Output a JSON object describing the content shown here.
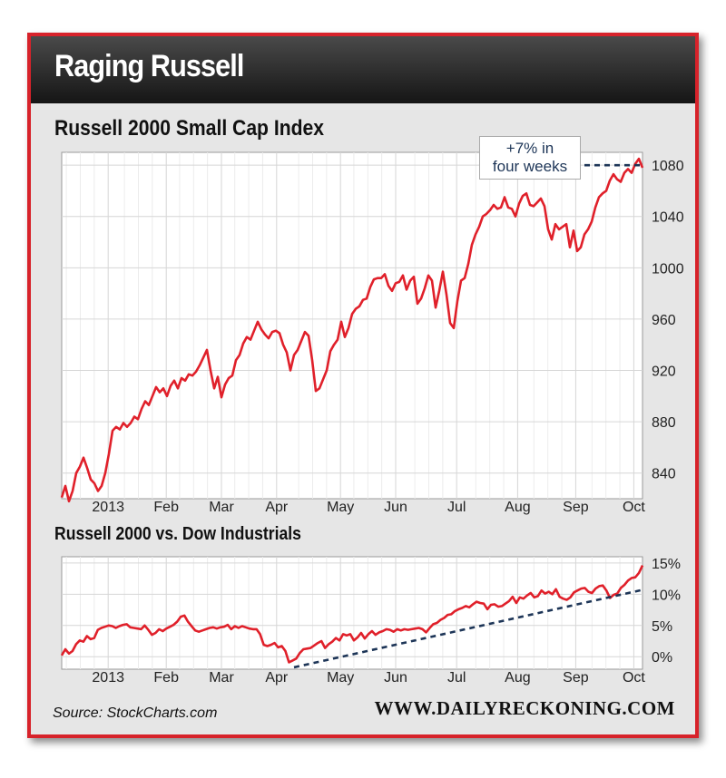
{
  "header": {
    "title": "Raging Russell"
  },
  "source": "Source: StockCharts.com",
  "brand": "WWW.DAILYRECKONING.COM",
  "colors": {
    "frame": "#d7222a",
    "line": "#e0202a",
    "trend": "#1d3557",
    "header": "#222222"
  },
  "chart_data": [
    {
      "type": "line",
      "title": "Russell 2000 Small Cap Index",
      "x_tick_labels": [
        "2013",
        "Feb",
        "Mar",
        "Apr",
        "May",
        "Jun",
        "Jul",
        "Aug",
        "Sep",
        "Oct"
      ],
      "y_tick_labels": [
        "840",
        "880",
        "920",
        "960",
        "1000",
        "1040",
        "1080"
      ],
      "ylim": [
        820,
        1090
      ],
      "annotation": {
        "line1": "+7% in",
        "line2": "four weeks"
      },
      "series": [
        {
          "values": [
            821,
            830,
            818,
            826,
            840,
            845,
            852,
            844,
            835,
            832,
            826,
            830,
            840,
            855,
            873,
            876,
            874,
            879,
            876,
            879,
            884,
            882,
            890,
            896,
            893,
            900,
            907,
            903,
            906,
            900,
            908,
            912,
            906,
            914,
            912,
            917,
            916,
            919,
            924,
            930,
            936,
            920,
            906,
            915,
            899,
            909,
            914,
            916,
            928,
            932,
            941,
            946,
            944,
            951,
            958,
            952,
            948,
            945,
            950,
            951,
            949,
            940,
            934,
            920,
            932,
            936,
            943,
            950,
            947,
            928,
            904,
            906,
            913,
            920,
            935,
            940,
            944,
            958,
            946,
            953,
            964,
            968,
            970,
            975,
            976,
            985,
            991,
            992,
            992,
            995,
            986,
            982,
            988,
            989,
            994,
            983,
            990,
            993,
            972,
            976,
            984,
            994,
            990,
            969,
            982,
            997,
            979,
            957,
            953,
            974,
            990,
            992,
            1003,
            1018,
            1026,
            1032,
            1040,
            1042,
            1045,
            1049,
            1046,
            1047,
            1055,
            1047,
            1046,
            1040,
            1050,
            1056,
            1058,
            1049,
            1048,
            1051,
            1054,
            1048,
            1030,
            1022,
            1034,
            1030,
            1032,
            1034,
            1016,
            1029,
            1013,
            1016,
            1026,
            1030,
            1036,
            1047,
            1055,
            1058,
            1060,
            1068,
            1073,
            1069,
            1067,
            1074,
            1077,
            1074,
            1081,
            1085,
            1078
          ]
        }
      ],
      "trend_dotted": [
        {
          "x": 0.9,
          "y": 1080
        },
        {
          "x": 1.0,
          "y": 1080
        }
      ]
    },
    {
      "type": "line",
      "title": "Russell 2000 vs. Dow Industrials",
      "x_tick_labels": [
        "2013",
        "Feb",
        "Mar",
        "Apr",
        "May",
        "Jun",
        "Jul",
        "Aug",
        "Sep",
        "Oct"
      ],
      "y_tick_labels": [
        "0%",
        "5%",
        "10%",
        "15%"
      ],
      "ylim": [
        -2,
        16
      ],
      "series": [
        {
          "values": [
            0.2,
            1.2,
            0.5,
            0.9,
            2.0,
            2.6,
            2.4,
            3.3,
            2.8,
            3.0,
            4.3,
            4.6,
            4.8,
            5.0,
            4.9,
            4.6,
            4.9,
            5.1,
            5.2,
            4.7,
            4.6,
            4.5,
            4.4,
            5.0,
            4.3,
            3.5,
            3.8,
            4.4,
            4.1,
            4.5,
            4.8,
            5.1,
            5.6,
            6.4,
            6.6,
            5.6,
            4.9,
            4.2,
            4.0,
            4.2,
            4.4,
            4.6,
            4.7,
            4.5,
            4.7,
            4.8,
            5.1,
            4.4,
            4.9,
            4.6,
            4.9,
            4.7,
            4.5,
            4.4,
            4.4,
            3.6,
            1.9,
            1.7,
            1.9,
            2.2,
            1.5,
            1.7,
            0.9,
            -0.9,
            -0.6,
            -0.3,
            0.6,
            1.2,
            1.3,
            1.4,
            1.8,
            2.2,
            2.5,
            1.4,
            2.0,
            2.4,
            3.0,
            2.6,
            3.6,
            3.4,
            3.6,
            2.6,
            3.1,
            3.8,
            2.9,
            3.6,
            4.1,
            3.5,
            3.9,
            4.1,
            4.4,
            4.3,
            4.0,
            4.4,
            4.2,
            4.4,
            4.3,
            4.4,
            4.5,
            4.6,
            4.4,
            3.9,
            4.6,
            5.2,
            5.4,
            5.9,
            6.2,
            6.7,
            6.8,
            7.3,
            7.6,
            7.8,
            8.1,
            7.9,
            8.4,
            8.8,
            8.6,
            8.5,
            7.6,
            8.3,
            8.4,
            8.0,
            8.1,
            8.5,
            8.9,
            9.6,
            8.6,
            9.5,
            9.3,
            9.8,
            10.2,
            9.5,
            9.7,
            10.6,
            10.1,
            10.4,
            10.0,
            10.8,
            9.6,
            9.3,
            9.1,
            9.5,
            10.3,
            10.6,
            10.9,
            11.0,
            10.4,
            10.2,
            10.9,
            11.3,
            11.4,
            10.6,
            9.4,
            9.9,
            10.1,
            11.0,
            11.5,
            12.2,
            12.6,
            12.7,
            13.4,
            14.6
          ]
        }
      ],
      "trend_dotted": [
        {
          "x": 0.4,
          "y": -1.7
        },
        {
          "x": 1.0,
          "y": 10.7
        }
      ]
    }
  ]
}
